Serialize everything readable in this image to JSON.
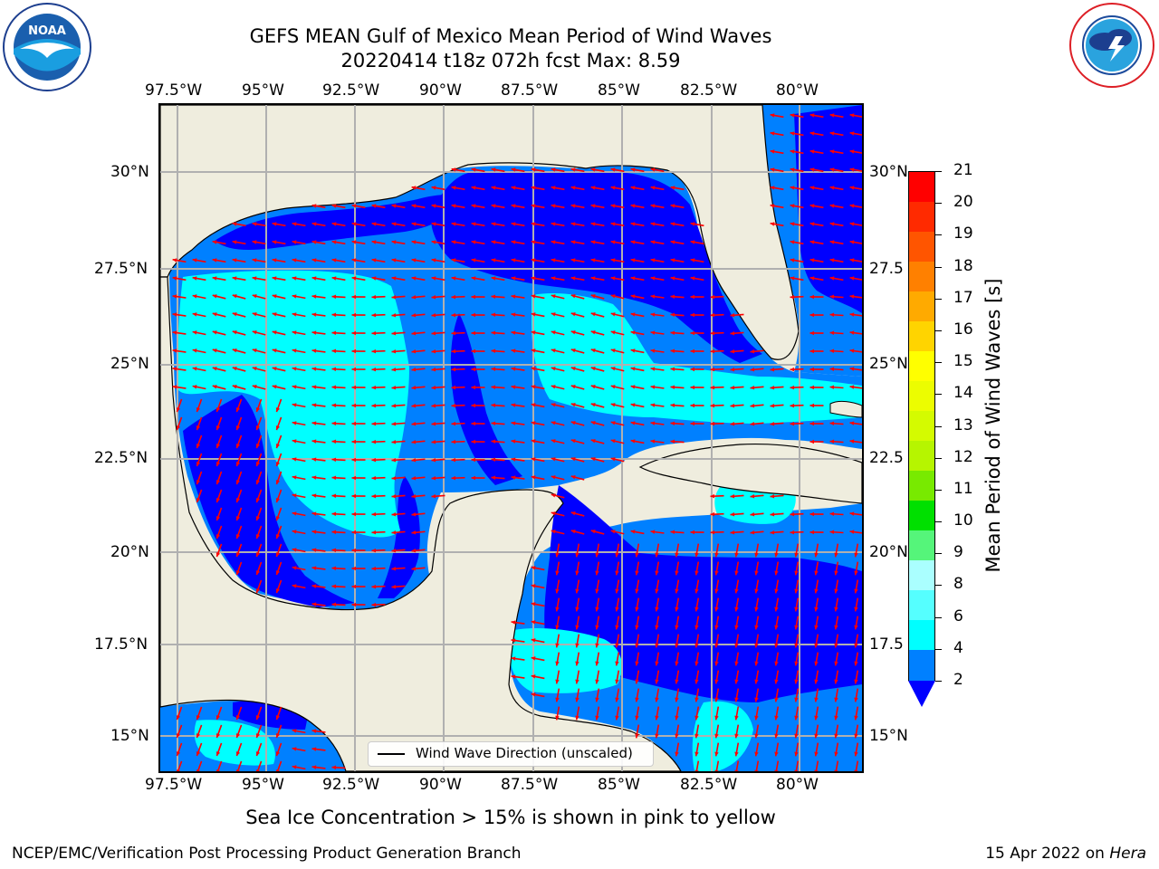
{
  "title": {
    "line1": "GEFS MEAN Gulf of Mexico Mean Period of Wind Waves",
    "line2": "20220414 t18z 072h fcst   Max: 8.59"
  },
  "axes": {
    "lon_labels": [
      "97.5°W",
      "95°W",
      "92.5°W",
      "90°W",
      "87.5°W",
      "85°W",
      "82.5°W",
      "80°W"
    ],
    "lat_labels_left": [
      "30°N",
      "27.5°N",
      "25°N",
      "22.5°N",
      "20°N",
      "17.5°N",
      "15°N"
    ],
    "lat_labels_right": [
      "30°N",
      "27.5",
      "25°N",
      "22.5",
      "20°N",
      "17.5",
      "15°N"
    ]
  },
  "colorbar": {
    "title": "Mean Period of Wind Waves [s]",
    "ticks": [
      "21",
      "20",
      "19",
      "18",
      "17",
      "16",
      "15",
      "14",
      "13",
      "12",
      "11",
      "10",
      "9",
      "8",
      "6",
      "4",
      "2"
    ],
    "colors": [
      "#ff0000",
      "#ff2a00",
      "#ff5500",
      "#ff8000",
      "#ffaa00",
      "#ffd400",
      "#ffff00",
      "#ecfd00",
      "#d4fb00",
      "#b6f500",
      "#78ea00",
      "#00e000",
      "#55f57a",
      "#aaffff",
      "#55ffff",
      "#00ffff",
      "#0080ff"
    ],
    "extend_color": "#0000ff"
  },
  "legend": {
    "label": "Wind Wave Direction (unscaled)"
  },
  "footnote": "Sea Ice Concentration > 15% is shown in pink to yellow",
  "credit": "NCEP/EMC/Verification Post Processing Product Generation Branch",
  "date_prefix": "15 Apr 2022 on ",
  "date_machine": "Hera",
  "logos": {
    "noaa_text": "NOAA",
    "noaa_ring": "NATIONAL OCEANIC AND ATMOSPHERIC ADMINISTRATION",
    "nws_ring": "NATIONAL WEATHER SERVICE"
  }
}
